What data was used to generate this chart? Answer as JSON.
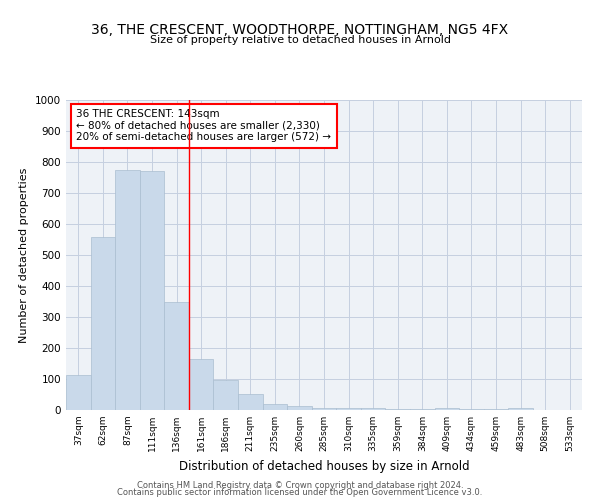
{
  "title": "36, THE CRESCENT, WOODTHORPE, NOTTINGHAM, NG5 4FX",
  "subtitle": "Size of property relative to detached houses in Arnold",
  "xlabel": "Distribution of detached houses by size in Arnold",
  "ylabel": "Number of detached properties",
  "bar_color": "#c9d9ea",
  "bar_edge_color": "#aabdd0",
  "bar_categories": [
    "37sqm",
    "62sqm",
    "87sqm",
    "111sqm",
    "136sqm",
    "161sqm",
    "186sqm",
    "211sqm",
    "235sqm",
    "260sqm",
    "285sqm",
    "310sqm",
    "335sqm",
    "359sqm",
    "384sqm",
    "409sqm",
    "434sqm",
    "459sqm",
    "483sqm",
    "508sqm",
    "533sqm"
  ],
  "bar_values": [
    113,
    557,
    775,
    770,
    348,
    163,
    97,
    53,
    18,
    13,
    8,
    6,
    5,
    3,
    2,
    8,
    2,
    2,
    8,
    1,
    1
  ],
  "red_line_x": 4.5,
  "annotation_line1": "36 THE CRESCENT: 143sqm",
  "annotation_line2": "← 80% of detached houses are smaller (2,330)",
  "annotation_line3": "20% of semi-detached houses are larger (572) →",
  "ylim": [
    0,
    1000
  ],
  "yticks": [
    0,
    100,
    200,
    300,
    400,
    500,
    600,
    700,
    800,
    900,
    1000
  ],
  "footer_line1": "Contains HM Land Registry data © Crown copyright and database right 2024.",
  "footer_line2": "Contains public sector information licensed under the Open Government Licence v3.0.",
  "bg_color": "#eef2f7",
  "grid_color": "#c5cfe0"
}
